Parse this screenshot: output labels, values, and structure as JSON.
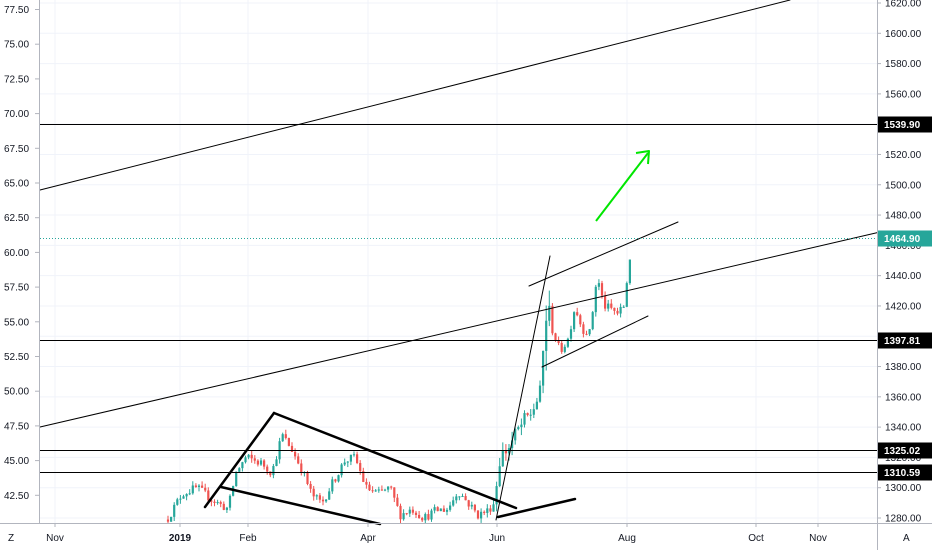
{
  "chart_data": {
    "type": "candlestick",
    "title": "",
    "left_axis": {
      "ticks": [
        "77.50",
        "75.00",
        "72.50",
        "70.00",
        "67.50",
        "65.00",
        "62.50",
        "60.00",
        "57.50",
        "55.00",
        "52.50",
        "50.00",
        "47.50",
        "45.00",
        "42.50"
      ]
    },
    "right_axis": {
      "ticks": [
        "1620.00",
        "1600.00",
        "1580.00",
        "1560.00",
        "1540.00",
        "1520.00",
        "1500.00",
        "1480.00",
        "1460.00",
        "1440.00",
        "1420.00",
        "1400.00",
        "1380.00",
        "1360.00",
        "1340.00",
        "1320.00",
        "1300.00",
        "1280.00"
      ]
    },
    "x_axis": {
      "ticks": [
        "Nov",
        "2019",
        "Feb",
        "Apr",
        "Jun",
        "Aug",
        "Oct",
        "Nov"
      ]
    },
    "axis_buttons": {
      "left": "Z",
      "right": "A"
    },
    "horizontal_levels": [
      {
        "value": 1539.9,
        "label": "1539.90",
        "style": "solid",
        "color": "#000000"
      },
      {
        "value": 1464.9,
        "label": "1464.90",
        "style": "dotted",
        "color": "#26a69a"
      },
      {
        "value": 1397.81,
        "label": "1397.81",
        "style": "solid",
        "color": "#000000"
      },
      {
        "value": 1325.02,
        "label": "1325.02",
        "style": "solid",
        "color": "#000000"
      },
      {
        "value": 1310.59,
        "label": "1310.59",
        "style": "solid",
        "color": "#000000"
      }
    ],
    "candle_colors": {
      "up": "#26a69a",
      "down": "#ef5350"
    },
    "annotation_arrow_color": "#00e600",
    "trendline_color": "#000000",
    "grid": true
  }
}
